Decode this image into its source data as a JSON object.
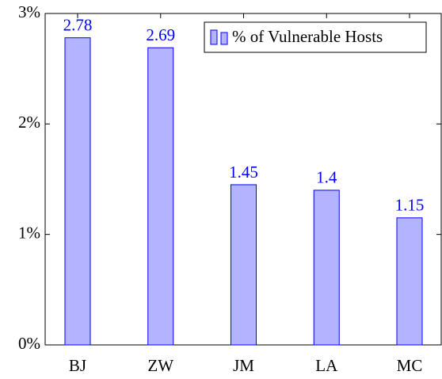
{
  "chart_data": {
    "type": "bar",
    "categories": [
      "BJ",
      "ZW",
      "JM",
      "LA",
      "MC"
    ],
    "series": [
      {
        "name": "% of Vulnerable Hosts",
        "color": "#b3b3ff",
        "values": [
          2.78,
          2.69,
          1.45,
          1.4,
          1.15
        ]
      }
    ],
    "ylim": [
      0,
      3
    ],
    "yticks": [
      {
        "value": 0,
        "label": "0%"
      },
      {
        "value": 1,
        "label": "1%"
      },
      {
        "value": 2,
        "label": "2%"
      },
      {
        "value": 3,
        "label": "3%"
      }
    ],
    "legend": "top-right",
    "grid": false
  }
}
